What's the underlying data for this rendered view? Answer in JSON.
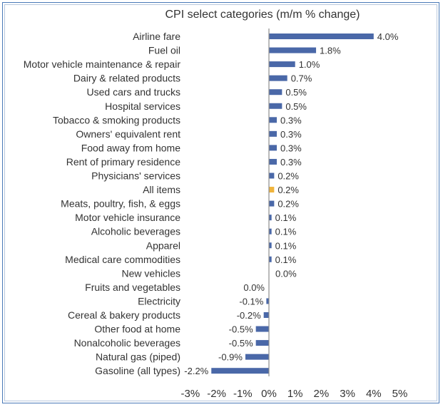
{
  "chart_data": {
    "type": "bar",
    "orientation": "horizontal",
    "title": "CPI select categories (m/m % change)",
    "categories": [
      "Airline fare",
      "Fuel oil",
      "Motor vehicle maintenance & repair",
      "Dairy & related products",
      "Used cars and trucks",
      "Hospital services",
      "Tobacco & smoking products",
      "Owners' equivalent rent",
      "Food away from home",
      "Rent of primary residence",
      "Physicians' services",
      "All items",
      "Meats, poultry, fish, & eggs",
      "Motor vehicle insurance",
      "Alcoholic beverages",
      "Apparel",
      "Medical care commodities",
      "New vehicles",
      "Fruits and vegetables",
      "Electricity",
      "Cereal & bakery products",
      "Other food at home",
      "Nonalcoholic beverages",
      "Natural gas (piped)",
      "Gasoline (all types)"
    ],
    "values": [
      4.0,
      1.8,
      1.0,
      0.7,
      0.5,
      0.5,
      0.3,
      0.3,
      0.3,
      0.3,
      0.2,
      0.2,
      0.2,
      0.1,
      0.1,
      0.1,
      0.1,
      0.0,
      0.0,
      -0.1,
      -0.2,
      -0.5,
      -0.5,
      -0.9,
      -2.2
    ],
    "value_labels": [
      "4.0%",
      "1.8%",
      "1.0%",
      "0.7%",
      "0.5%",
      "0.5%",
      "0.3%",
      "0.3%",
      "0.3%",
      "0.3%",
      "0.2%",
      "0.2%",
      "0.2%",
      "0.1%",
      "0.1%",
      "0.1%",
      "0.1%",
      "0.0%",
      "0.0%",
      "-0.1%",
      "-0.2%",
      "-0.5%",
      "-0.5%",
      "-0.9%",
      "-2.2%"
    ],
    "highlight_category": "All items",
    "xlim": [
      -3,
      5
    ],
    "xticks": [
      -3,
      -2,
      -1,
      0,
      1,
      2,
      3,
      4,
      5
    ],
    "xtick_labels": [
      "-3%",
      "-2%",
      "-1%",
      "0%",
      "1%",
      "2%",
      "3%",
      "4%",
      "5%"
    ],
    "grid": false,
    "legend": "none",
    "colors": {
      "bar": "#4a68a8",
      "highlight": "#f0b43c",
      "axis": "#8c8c8c",
      "frame": "#4a7ab8"
    }
  }
}
